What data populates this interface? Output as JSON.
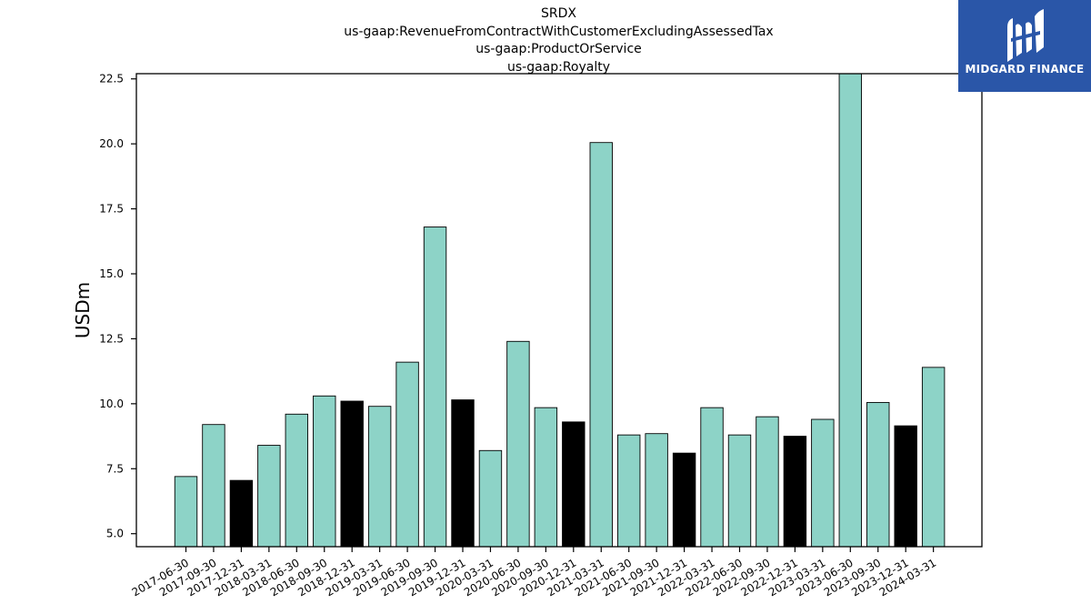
{
  "title_lines": [
    "SRDX",
    "us-gaap:RevenueFromContractWithCustomerExcludingAssessedTax",
    "us-gaap:ProductOrService",
    "us-gaap:Royalty"
  ],
  "logo": {
    "text": "MIDGARD FINANCE",
    "icon": "midgard-logo-icon",
    "bg_color": "#2a56a8"
  },
  "chart_data": {
    "type": "bar",
    "title": "SRDX",
    "ylabel": "USDm",
    "xlabel": "",
    "ylim": [
      4.5,
      22.7
    ],
    "yticks": [
      5.0,
      7.5,
      10.0,
      12.5,
      15.0,
      17.5,
      20.0,
      22.5
    ],
    "grid": false,
    "colors": {
      "default": "#8dd3c7",
      "highlight": "#000000",
      "edge": "#000000"
    },
    "categories": [
      "2017-06-30",
      "2017-09-30",
      "2017-12-31",
      "2018-03-31",
      "2018-06-30",
      "2018-09-30",
      "2018-12-31",
      "2019-03-31",
      "2019-06-30",
      "2019-09-30",
      "2019-12-31",
      "2020-03-31",
      "2020-06-30",
      "2020-09-30",
      "2020-12-31",
      "2021-03-31",
      "2021-06-30",
      "2021-09-30",
      "2021-12-31",
      "2022-03-31",
      "2022-06-30",
      "2022-09-30",
      "2022-12-31",
      "2023-03-31",
      "2023-06-30",
      "2023-09-30",
      "2023-12-31",
      "2024-03-31"
    ],
    "values": [
      7.2,
      9.2,
      7.05,
      8.4,
      9.6,
      10.3,
      10.1,
      9.9,
      11.6,
      16.8,
      10.15,
      8.2,
      12.4,
      9.85,
      9.3,
      20.05,
      8.8,
      8.85,
      8.1,
      9.85,
      8.8,
      9.5,
      8.75,
      9.4,
      22.7,
      10.05,
      9.15,
      11.4
    ],
    "highlight": [
      false,
      false,
      true,
      false,
      false,
      false,
      true,
      false,
      false,
      false,
      true,
      false,
      false,
      false,
      true,
      false,
      false,
      false,
      true,
      false,
      false,
      false,
      true,
      false,
      false,
      false,
      true,
      false
    ]
  }
}
